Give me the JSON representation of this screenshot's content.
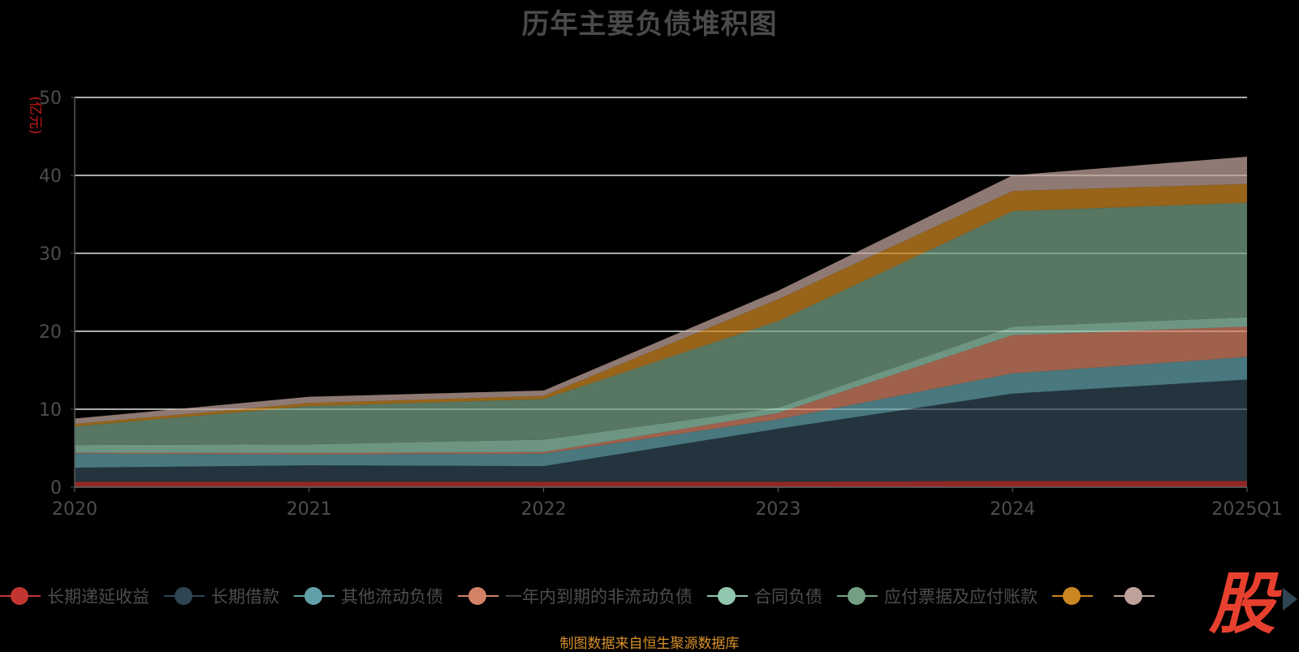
{
  "chart_data": {
    "type": "area",
    "stacked": true,
    "title": "历年主要负债堆积图",
    "ylabel": "(亿元)",
    "xlabel": "",
    "ylim": [
      0,
      50
    ],
    "yticks": [
      0,
      10,
      20,
      30,
      40,
      50
    ],
    "grid": true,
    "legend_position": "bottom",
    "categories": [
      "2020",
      "2021",
      "2022",
      "2023",
      "2024",
      "2025Q1"
    ],
    "series": [
      {
        "name": "长期递延收益",
        "color": "#c23531",
        "values": [
          0.7,
          0.7,
          0.7,
          0.7,
          0.8,
          0.8
        ]
      },
      {
        "name": "长期借款",
        "color": "#2f4554",
        "values": [
          1.8,
          2.1,
          2.0,
          6.8,
          11.2,
          13.0
        ]
      },
      {
        "name": "其他流动负债",
        "color": "#61a0a8",
        "values": [
          1.8,
          1.4,
          1.6,
          1.2,
          2.6,
          2.9
        ]
      },
      {
        "name": "一年内到期的非流动负债",
        "color": "#d48265",
        "values": [
          0.1,
          0.2,
          0.2,
          0.8,
          4.9,
          3.9
        ]
      },
      {
        "name": "合同负债",
        "color": "#91c7ae",
        "values": [
          1.0,
          1.1,
          1.6,
          0.7,
          1.1,
          1.2
        ]
      },
      {
        "name": "应付票据及应付账款",
        "color": "#749f83",
        "values": [
          2.4,
          4.9,
          5.2,
          11.1,
          14.8,
          14.7
        ]
      },
      {
        "name": "",
        "color": "#ca8622",
        "values": [
          0.3,
          0.4,
          0.4,
          2.8,
          2.6,
          2.4
        ]
      },
      {
        "name": "",
        "color": "#bda29a",
        "values": [
          0.7,
          0.8,
          0.7,
          1.1,
          2.0,
          3.5
        ]
      }
    ]
  },
  "legend_next_icon": "triangle-right-icon",
  "logo_text": "股",
  "footer": "制图数据来自恒生聚源数据库"
}
